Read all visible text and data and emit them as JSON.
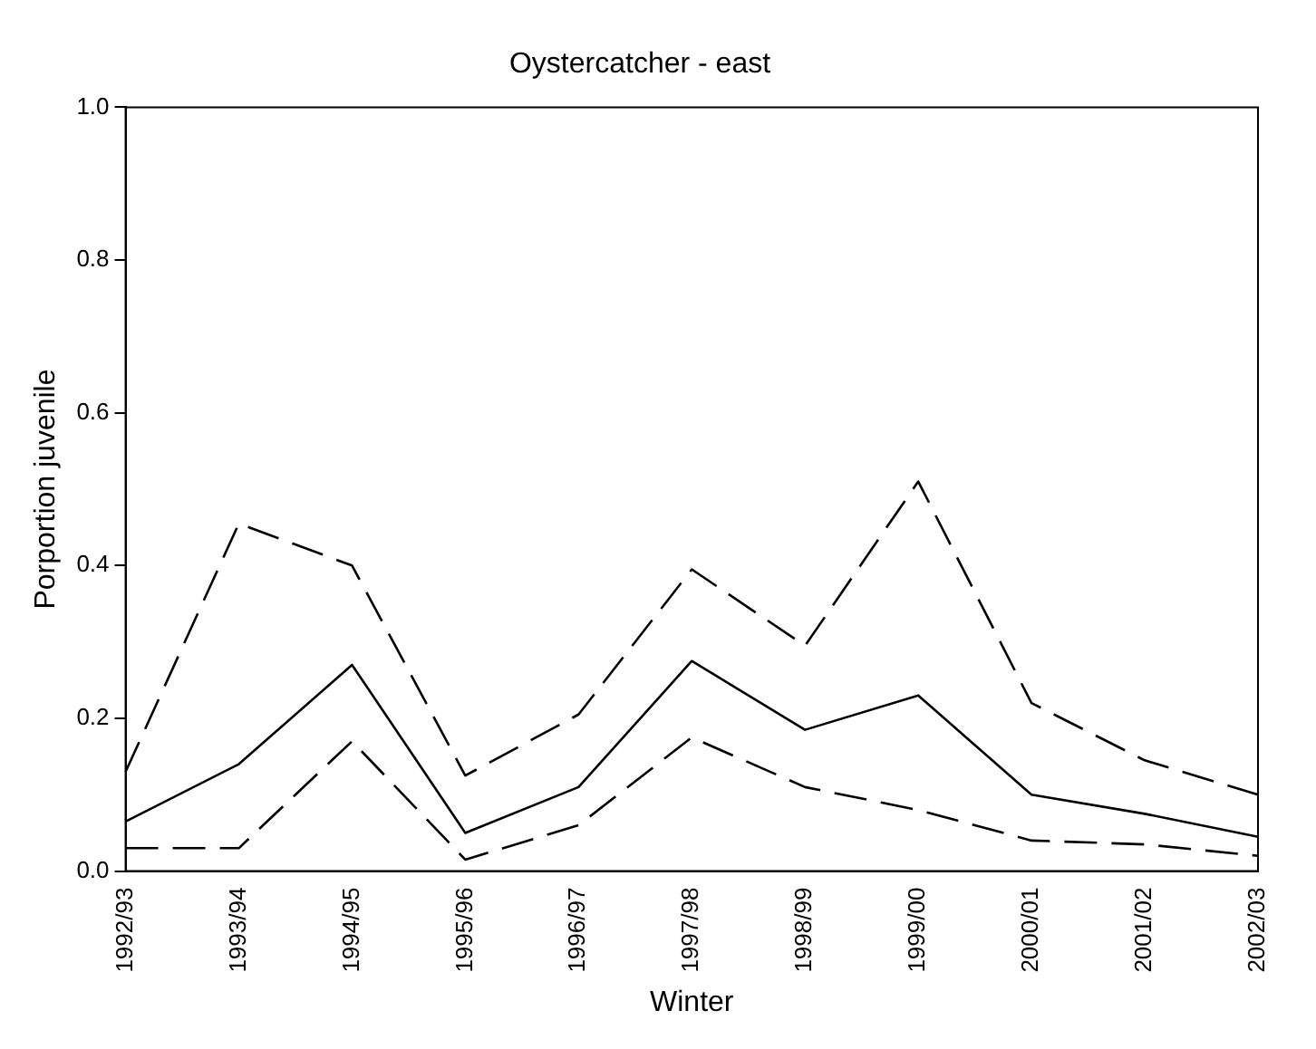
{
  "chart_data": {
    "type": "line",
    "title": "Oystercatcher - east",
    "xlabel": "Winter",
    "ylabel": "Porportion juvenile",
    "categories": [
      "1992/93",
      "1993/94",
      "1994/95",
      "1995/96",
      "1996/97",
      "1997/98",
      "1998/99",
      "1999/00",
      "2000/01",
      "2001/02",
      "2002/03"
    ],
    "series": [
      {
        "color": "#000000",
        "line_style": "solid",
        "values": [
          0.065,
          0.14,
          0.27,
          0.05,
          0.11,
          0.275,
          0.185,
          0.23,
          0.1,
          0.075,
          0.045
        ]
      },
      {
        "color": "#000000",
        "line_style": "dashed",
        "values": [
          0.13,
          0.455,
          0.4,
          0.125,
          0.205,
          0.395,
          0.295,
          0.51,
          0.22,
          0.145,
          0.1
        ]
      },
      {
        "color": "#000000",
        "line_style": "dashed",
        "values": [
          0.03,
          0.03,
          0.17,
          0.015,
          0.06,
          0.175,
          0.11,
          0.08,
          0.04,
          0.035,
          0.02
        ]
      }
    ],
    "ylim": [
      0,
      1
    ],
    "yticks": [
      {
        "value": 0,
        "label": "0.0"
      },
      0.2,
      0.4,
      0.6,
      0.8,
      {
        "value": 1,
        "label": "1.0"
      }
    ],
    "grid": false,
    "legend": false,
    "marker": "none"
  }
}
